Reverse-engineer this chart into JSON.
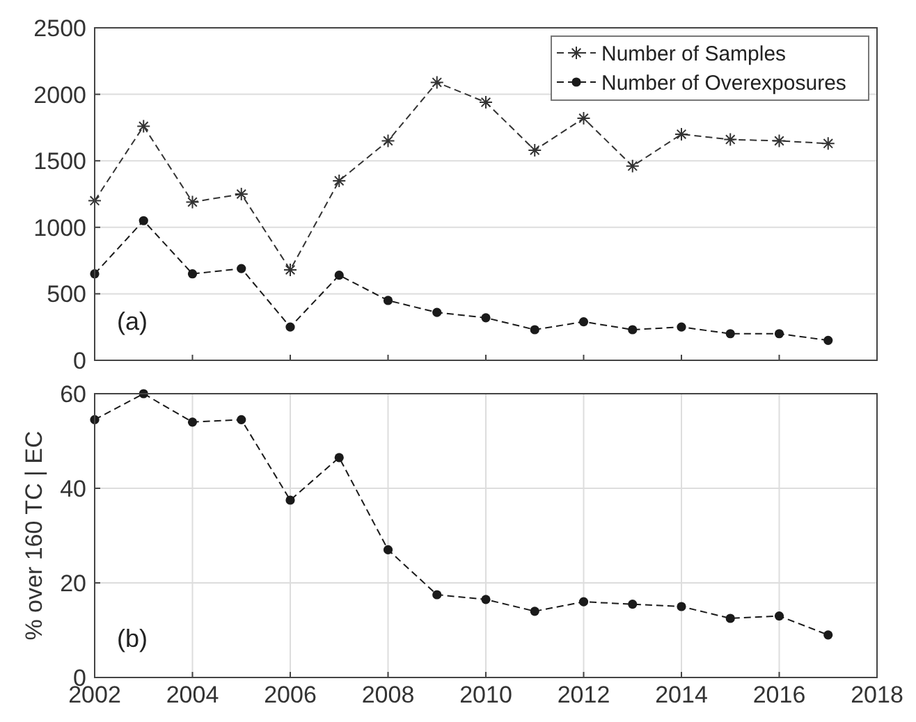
{
  "chart_data": [
    {
      "type": "line",
      "x": [
        2002,
        2003,
        2004,
        2005,
        2006,
        2007,
        2008,
        2009,
        2010,
        2011,
        2012,
        2013,
        2014,
        2015,
        2016,
        2017
      ],
      "xlim": [
        2002,
        2018
      ],
      "xticks": [
        2002,
        2004,
        2006,
        2008,
        2010,
        2012,
        2014,
        2016,
        2018
      ],
      "ylim": [
        0,
        2500
      ],
      "yticks": [
        0,
        500,
        1000,
        1500,
        2000,
        2500
      ],
      "tick_labels": "y",
      "grid": "y",
      "legend": "top right",
      "line_style": "dashed",
      "annotations": [
        "(a)"
      ],
      "series": [
        {
          "name": "Number of Samples",
          "color": "#333333",
          "marker": "cross",
          "values": [
            1200,
            1760,
            1190,
            1250,
            680,
            1350,
            1650,
            2090,
            1940,
            1580,
            1820,
            1460,
            1700,
            1660,
            1650,
            1630
          ]
        },
        {
          "name": "Number of Overexposures",
          "color": "#1a1a1a",
          "marker": "circle",
          "values": [
            650,
            1050,
            650,
            690,
            250,
            640,
            450,
            360,
            320,
            230,
            290,
            230,
            250,
            200,
            200,
            150
          ]
        }
      ]
    },
    {
      "type": "line",
      "x": [
        2002,
        2003,
        2004,
        2005,
        2006,
        2007,
        2008,
        2009,
        2010,
        2011,
        2012,
        2013,
        2014,
        2015,
        2016,
        2017
      ],
      "xlim": [
        2002,
        2018
      ],
      "xticks": [
        2002,
        2004,
        2006,
        2008,
        2010,
        2012,
        2014,
        2016,
        2018
      ],
      "ylim": [
        0,
        60
      ],
      "yticks": [
        0,
        20,
        40,
        60
      ],
      "ylabel": "% over 160 TC | EC",
      "grid": true,
      "line_style": "dashed",
      "marker": "circle",
      "annotations": [
        "(b)"
      ],
      "series": [
        {
          "color": "#1a1a1a",
          "values": [
            54.5,
            60,
            54,
            54.5,
            37.5,
            46.5,
            27,
            17.5,
            16.5,
            14,
            16,
            15.5,
            15,
            12.5,
            13,
            9
          ]
        }
      ]
    }
  ]
}
